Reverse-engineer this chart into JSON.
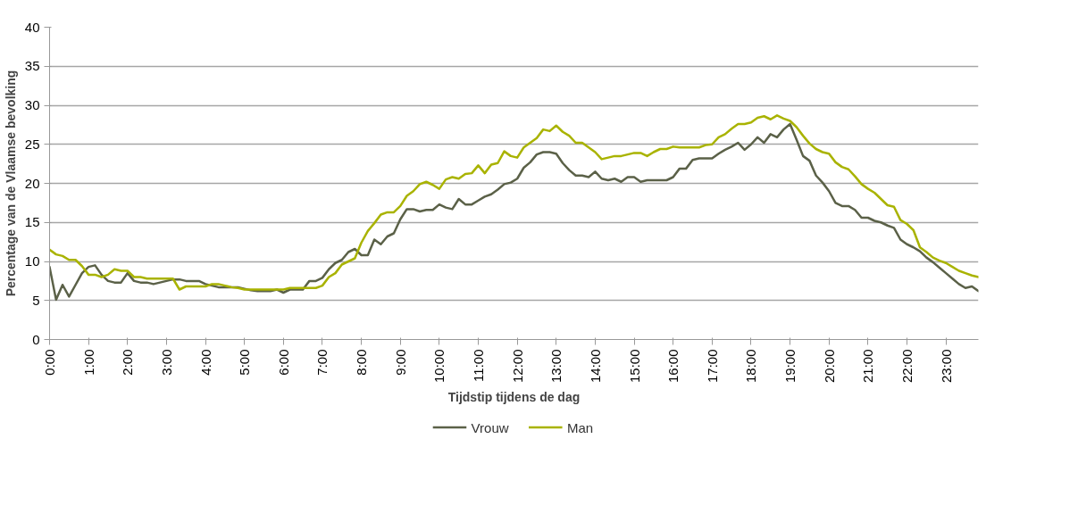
{
  "chart_data": {
    "type": "line",
    "xlabel": "Tijdstip tijdens de dag",
    "ylabel": "Percentage van de Vlaamse bevolking",
    "categories": [
      "0:00",
      null,
      null,
      null,
      null,
      null,
      "1:00",
      null,
      null,
      null,
      null,
      null,
      "2:00",
      null,
      null,
      null,
      null,
      null,
      "3:00",
      null,
      null,
      null,
      null,
      null,
      "4:00",
      null,
      null,
      null,
      null,
      null,
      "5:00",
      null,
      null,
      null,
      null,
      null,
      "6:00",
      null,
      null,
      null,
      null,
      null,
      "7:00",
      null,
      null,
      null,
      null,
      null,
      "8:00",
      null,
      null,
      null,
      null,
      null,
      "9:00",
      null,
      null,
      null,
      null,
      null,
      "10:00",
      null,
      null,
      null,
      null,
      null,
      "11:00",
      null,
      null,
      null,
      null,
      null,
      "12:00",
      null,
      null,
      null,
      null,
      null,
      "13:00",
      null,
      null,
      null,
      null,
      null,
      "14:00",
      null,
      null,
      null,
      null,
      null,
      "15:00",
      null,
      null,
      null,
      null,
      null,
      "16:00",
      null,
      null,
      null,
      null,
      null,
      "17:00",
      null,
      null,
      null,
      null,
      null,
      "18:00",
      null,
      null,
      null,
      null,
      null,
      "19:00",
      null,
      null,
      null,
      null,
      null,
      "20:00",
      null,
      null,
      null,
      null,
      null,
      "21:00",
      null,
      null,
      null,
      null,
      null,
      "22:00",
      null,
      null,
      null,
      null,
      null,
      "23:00",
      null,
      null,
      null,
      null,
      null
    ],
    "series": [
      {
        "name": "Vrouw",
        "color": "#5b6148",
        "values": [
          9.3,
          5.1,
          7.0,
          5.5,
          7.0,
          8.5,
          9.3,
          9.5,
          8.3,
          7.5,
          7.3,
          7.3,
          8.5,
          7.5,
          7.3,
          7.3,
          7.1,
          7.3,
          7.5,
          7.7,
          7.7,
          7.5,
          7.5,
          7.5,
          7.1,
          6.9,
          6.7,
          6.7,
          6.7,
          6.7,
          6.5,
          6.3,
          6.2,
          6.2,
          6.2,
          6.4,
          6.0,
          6.4,
          6.4,
          6.4,
          7.5,
          7.5,
          7.9,
          9.0,
          9.8,
          10.2,
          11.2,
          11.6,
          10.8,
          10.8,
          12.8,
          12.2,
          13.2,
          13.6,
          15.4,
          16.7,
          16.7,
          16.4,
          16.6,
          16.6,
          17.3,
          16.9,
          16.7,
          18.0,
          17.3,
          17.3,
          17.8,
          18.3,
          18.6,
          19.2,
          19.9,
          20.1,
          20.6,
          22.0,
          22.7,
          23.7,
          24.0,
          24.0,
          23.8,
          22.6,
          21.7,
          21.0,
          21.0,
          20.8,
          21.5,
          20.6,
          20.4,
          20.6,
          20.2,
          20.8,
          20.8,
          20.2,
          20.4,
          20.4,
          20.4,
          20.4,
          20.8,
          21.9,
          21.9,
          23.0,
          23.2,
          23.2,
          23.2,
          23.8,
          24.3,
          24.7,
          25.2,
          24.3,
          25.0,
          25.9,
          25.2,
          26.3,
          25.9,
          26.9,
          27.6,
          25.6,
          23.5,
          22.9,
          21.0,
          20.1,
          19.0,
          17.5,
          17.1,
          17.1,
          16.6,
          15.6,
          15.6,
          15.2,
          15.0,
          14.6,
          14.3,
          12.8,
          12.2,
          11.8,
          11.3,
          10.5,
          9.9,
          9.2,
          8.5,
          7.8,
          7.1,
          6.6,
          6.8,
          6.2
        ]
      },
      {
        "name": "Man",
        "color": "#a9b300",
        "values": [
          11.5,
          10.9,
          10.7,
          10.2,
          10.2,
          9.4,
          8.3,
          8.3,
          8.0,
          8.3,
          9.0,
          8.8,
          8.8,
          8.0,
          8.0,
          7.8,
          7.8,
          7.8,
          7.8,
          7.8,
          6.4,
          6.8,
          6.8,
          6.8,
          6.8,
          7.1,
          7.1,
          6.9,
          6.7,
          6.6,
          6.4,
          6.4,
          6.4,
          6.4,
          6.4,
          6.4,
          6.4,
          6.6,
          6.6,
          6.6,
          6.6,
          6.6,
          6.9,
          8.0,
          8.5,
          9.6,
          10.0,
          10.4,
          12.4,
          13.9,
          14.9,
          16.0,
          16.3,
          16.3,
          17.1,
          18.4,
          19.0,
          19.9,
          20.2,
          19.8,
          19.3,
          20.5,
          20.8,
          20.6,
          21.2,
          21.3,
          22.3,
          21.3,
          22.4,
          22.6,
          24.1,
          23.5,
          23.3,
          24.6,
          25.2,
          25.8,
          26.9,
          26.7,
          27.4,
          26.6,
          26.1,
          25.2,
          25.2,
          24.6,
          24.0,
          23.1,
          23.3,
          23.5,
          23.5,
          23.7,
          23.9,
          23.9,
          23.5,
          24.0,
          24.4,
          24.4,
          24.7,
          24.6,
          24.6,
          24.6,
          24.6,
          24.9,
          25.0,
          25.9,
          26.3,
          27.0,
          27.6,
          27.6,
          27.8,
          28.4,
          28.6,
          28.2,
          28.7,
          28.3,
          28.0,
          27.2,
          26.1,
          25.1,
          24.4,
          24.0,
          23.8,
          22.7,
          22.1,
          21.8,
          20.9,
          19.9,
          19.3,
          18.8,
          18.0,
          17.2,
          17.0,
          15.3,
          14.8,
          14.0,
          11.8,
          11.2,
          10.5,
          10.1,
          9.8,
          9.3,
          8.8,
          8.5,
          8.2,
          8.0
        ]
      }
    ],
    "ylim": [
      0,
      40
    ],
    "yticks": [
      0,
      5,
      10,
      15,
      20,
      25,
      30,
      35,
      40
    ],
    "grid": "y",
    "legend": "bottom",
    "marker": "none",
    "line_style": "solid"
  }
}
